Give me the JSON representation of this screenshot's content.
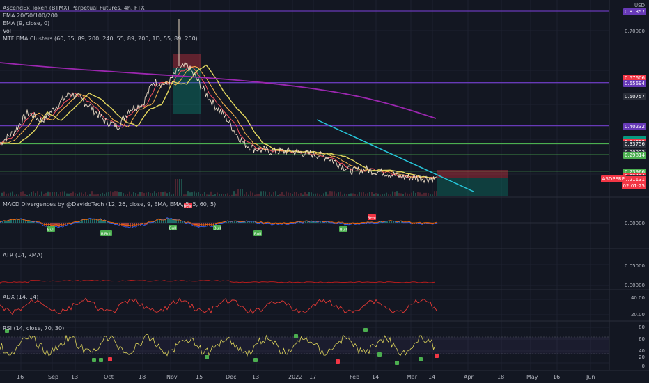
{
  "legend": {
    "title": "AscendEx Token (BTMX) Perpetual Futures, 4h, FTX",
    "ema": "EMA 20/50/100/200",
    "ema2": "EMA (9, close, 0)",
    "vol": "Vol",
    "mtf": "MTF EMA Clusters (60, 55, 89, 200, 240, 55, 89, 200, 1D, 55, 89, 200)"
  },
  "panes": {
    "macd": "MACD Divergences by @DaviddTech (12, 26, close, 9, EMA, EMA, 5, 5, 60, 5)",
    "atr": "ATR (14, RMA)",
    "adx": "ADX (14, 14)",
    "rsi": "RSI (14, close, 70, 30)"
  },
  "price_axis": {
    "currency": "USD",
    "ticks": [
      "0.70000",
      "0.50757",
      "0.40232",
      "0.33756",
      "0.30922",
      "0.29814",
      "0.23966",
      "0.22434",
      "0.21574"
    ],
    "labels": [
      {
        "text": "0.81357",
        "price": 0.81357,
        "color": "#673ab7"
      },
      {
        "text": "0.57606",
        "price": 0.57606,
        "color": "#f23645"
      },
      {
        "text": "0.55694",
        "price": 0.55694,
        "color": "#673ab7"
      },
      {
        "text": "0.50757",
        "price": 0.50757,
        "color": "#2a2e39"
      },
      {
        "text": "0.40232",
        "price": 0.40232,
        "color": "#673ab7"
      },
      {
        "text": "0.35324",
        "price": 0.35324,
        "color": "#089981"
      },
      {
        "text": "0.35176",
        "price": 0.35176,
        "color": "#089981"
      },
      {
        "text": "0.34693",
        "price": 0.34693,
        "color": "#f23645"
      },
      {
        "text": "0.33756",
        "price": 0.33756,
        "color": "#2a2e39"
      },
      {
        "text": "0.30922",
        "price": 0.30922,
        "color": "#2a2e39"
      },
      {
        "text": "0.29814",
        "price": 0.29814,
        "color": "#4caf50"
      },
      {
        "text": "0.23966",
        "price": 0.23966,
        "color": "#4caf50"
      },
      {
        "text": "0.22434",
        "price": 0.22434,
        "color": "#f23645"
      },
      {
        "text": "0.21574",
        "price": 0.21574,
        "color": "#2a2e39"
      },
      {
        "text": "0.21131",
        "price": 0.21131,
        "color": "#f23645"
      }
    ],
    "symbol_tag": "ASDPERP",
    "countdown": "02:01:25"
  },
  "pane_axes": {
    "macd": [
      "0.00000"
    ],
    "atr": [
      "0.05000",
      "0.00000"
    ],
    "adx": [
      "40.00",
      "20.00"
    ],
    "rsi": [
      "80",
      "60",
      "40",
      "20",
      "0"
    ]
  },
  "time_axis": [
    "16",
    "Sep",
    "13",
    "Oct",
    "18",
    "Nov",
    "15",
    "Dec",
    "13",
    "2022",
    "17",
    "Feb",
    "14",
    "Mar",
    "14",
    "Apr",
    "18",
    "May",
    "16",
    "Jun"
  ],
  "chart_data": {
    "type": "line",
    "symbol": "ASDPERP",
    "current_price": 0.21131,
    "horizontal_levels": [
      {
        "price": 0.81357,
        "color": "#673ab7"
      },
      {
        "price": 0.55694,
        "color": "#673ab7"
      },
      {
        "price": 0.40232,
        "color": "#673ab7"
      },
      {
        "price": 0.33756,
        "color": "#4caf50"
      },
      {
        "price": 0.29814,
        "color": "#4caf50"
      },
      {
        "price": 0.23966,
        "color": "#4caf50"
      }
    ],
    "price_series": [
      [
        "16",
        0.34
      ],
      [
        "Sep",
        0.4
      ],
      [
        "13",
        0.52
      ],
      [
        "Oct",
        0.37
      ],
      [
        "18",
        0.51
      ],
      [
        "Nov",
        0.6
      ],
      [
        "15",
        0.48
      ],
      [
        "Dec",
        0.32
      ],
      [
        "13",
        0.31
      ],
      [
        "2022",
        0.29
      ],
      [
        "17",
        0.25
      ],
      [
        "Feb",
        0.25
      ],
      [
        "14",
        0.23
      ],
      [
        "Mar",
        0.22
      ],
      [
        "14",
        0.211
      ]
    ],
    "divergence_tags": [
      "Bull",
      "Bull",
      "Bull",
      "Bull",
      "Bull",
      "Bull",
      "Bull",
      "Bear",
      "Bear"
    ]
  }
}
